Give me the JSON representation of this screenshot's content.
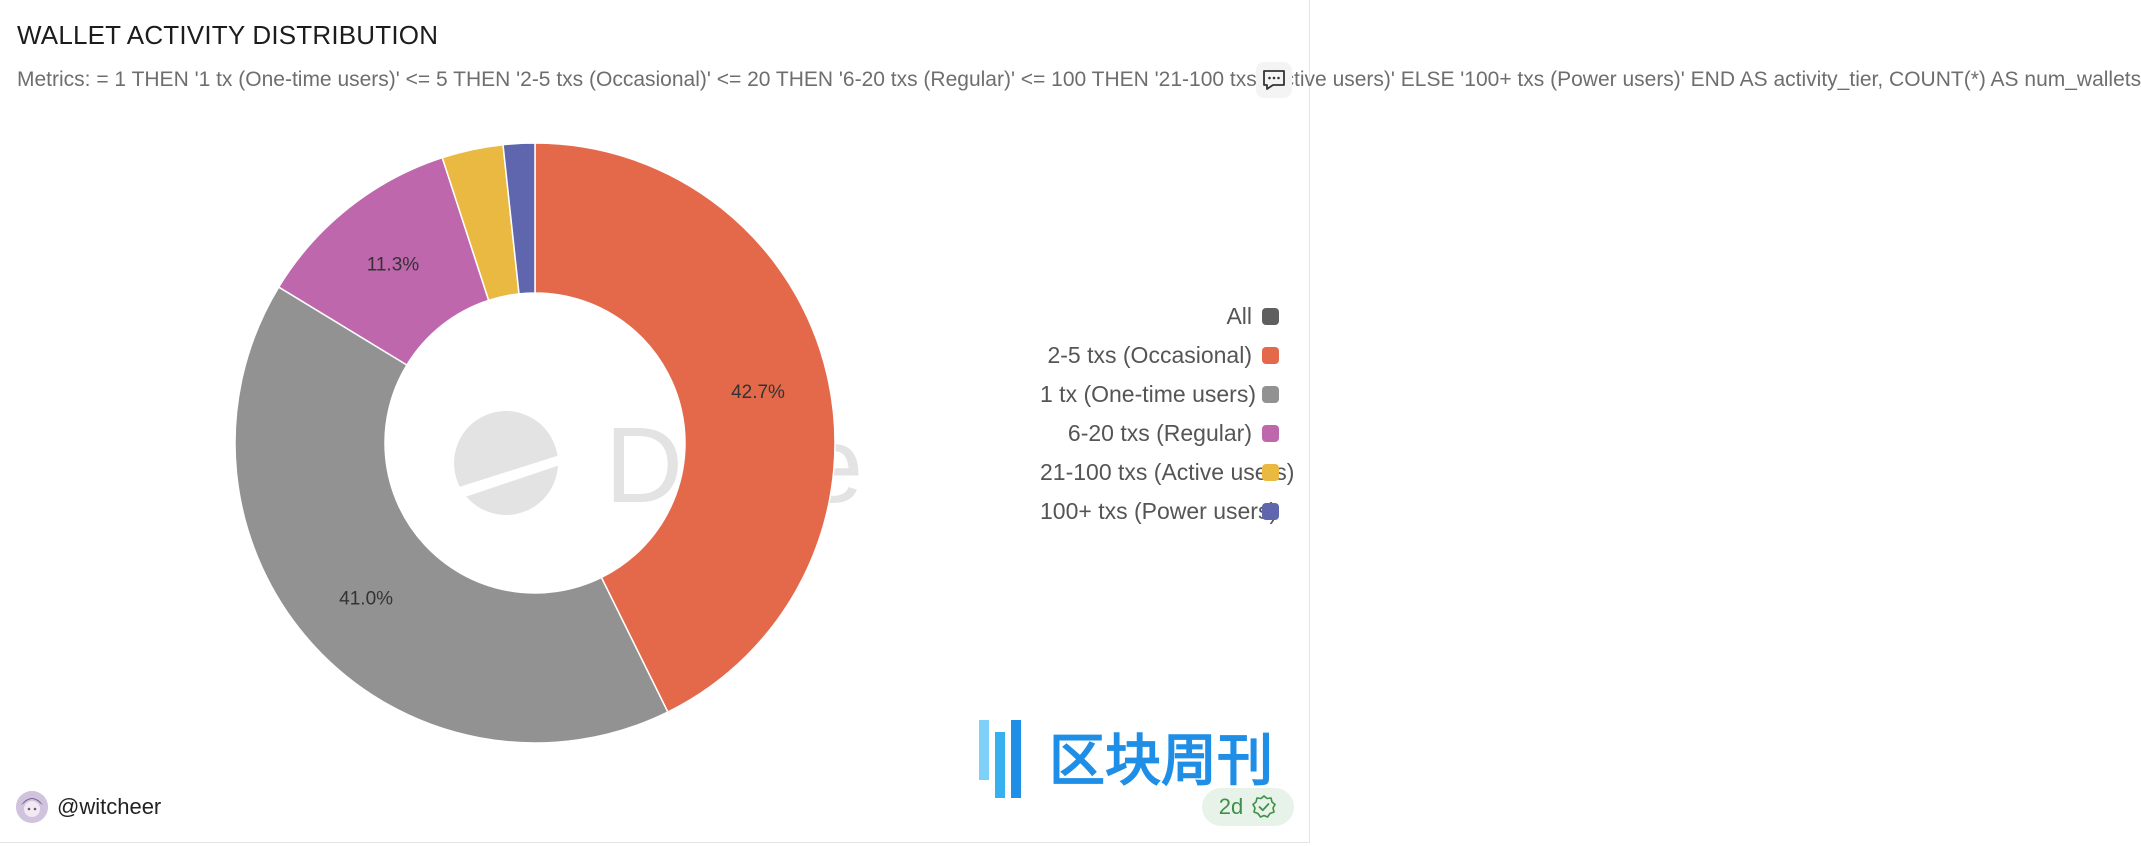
{
  "header": {
    "title": "WALLET ACTIVITY DISTRIBUTION",
    "subtitle": "Metrics: = 1 THEN '1 tx (One-time users)' <= 5 THEN '2-5 txs (Occasional)' <= 20 THEN '6-20 txs (Regular)' <= 100 THEN '21-100 txs (Active users)' ELSE '100+ txs (Power users)' END AS activity_tier, COUNT(*) AS num_wallets"
  },
  "chart_data": {
    "type": "pie",
    "donut": true,
    "slices": [
      {
        "label": "2-5 txs (Occasional)",
        "value": 42.7,
        "color": "#e4694a",
        "data_label": "42.7%"
      },
      {
        "label": "1 tx (One-time users)",
        "value": 41.0,
        "color": "#929292",
        "data_label": "41.0%"
      },
      {
        "label": "6-20 txs (Regular)",
        "value": 11.3,
        "color": "#be67ad",
        "data_label": "11.3%"
      },
      {
        "label": "21-100 txs (Active users)",
        "value": 3.3,
        "color": "#e9b941",
        "data_label": ""
      },
      {
        "label": "100+ txs (Power users)",
        "value": 1.7,
        "color": "#6066ae",
        "data_label": ""
      }
    ],
    "legend": [
      {
        "label": "All",
        "color": "#5f5f5f"
      },
      {
        "label": "2-5 txs (Occasional)",
        "color": "#e4694a"
      },
      {
        "label": "1 tx (One-time users)",
        "color": "#929292"
      },
      {
        "label": "6-20 txs (Regular)",
        "color": "#be67ad"
      },
      {
        "label": "21-100 txs (Active users)",
        "color": "#e9b941"
      },
      {
        "label": "100+ txs (Power users)",
        "color": "#6066ae"
      }
    ],
    "legend_position": "right",
    "watermark": "Dune"
  },
  "footer": {
    "author": "@witcheer",
    "age": "2d",
    "stamp_text": "区块周刊"
  },
  "icons": {
    "comment": "comment-icon",
    "verified": "verified-check-icon",
    "avatar": "avatar-icon"
  },
  "colors": {
    "verified_green": "#3f8f4a",
    "stamp_blue": "#1e8ee6"
  }
}
